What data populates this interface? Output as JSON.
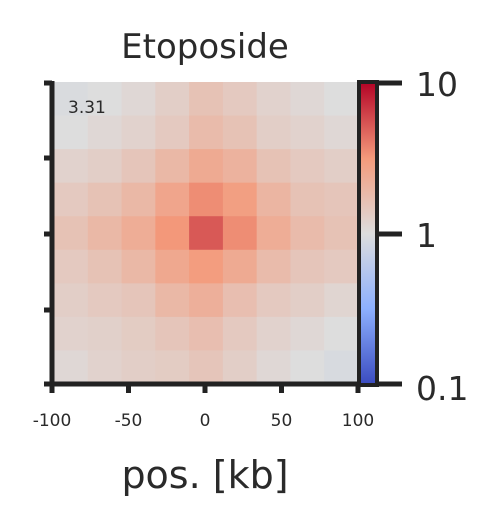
{
  "chart_data": {
    "type": "heatmap",
    "title": "Etoposide",
    "xlabel": "pos. [kb]",
    "ylabel": "",
    "x_ticks": [
      "-100",
      "-50",
      "0",
      "50",
      "100"
    ],
    "annotation": "3.31",
    "colorbar": {
      "scale": "log",
      "range": [
        0.1,
        10
      ],
      "ticks": [
        "0.1",
        "1",
        "10"
      ],
      "colormap": "coolwarm"
    },
    "values": [
      [
        0.95,
        1.0,
        1.1,
        1.3,
        1.6,
        1.4,
        1.2,
        1.1,
        1.0
      ],
      [
        1.0,
        1.1,
        1.2,
        1.4,
        1.8,
        1.6,
        1.3,
        1.2,
        1.1
      ],
      [
        1.2,
        1.3,
        1.5,
        1.9,
        2.4,
        2.1,
        1.6,
        1.4,
        1.3
      ],
      [
        1.4,
        1.6,
        1.9,
        2.6,
        3.5,
        2.9,
        2.0,
        1.6,
        1.5
      ],
      [
        1.6,
        1.9,
        2.3,
        3.2,
        5.2,
        3.5,
        2.3,
        1.8,
        1.6
      ],
      [
        1.4,
        1.6,
        1.9,
        2.5,
        3.0,
        2.4,
        1.8,
        1.5,
        1.4
      ],
      [
        1.3,
        1.4,
        1.5,
        1.9,
        2.2,
        1.7,
        1.4,
        1.3,
        1.15
      ],
      [
        1.2,
        1.25,
        1.35,
        1.5,
        1.7,
        1.4,
        1.2,
        1.1,
        1.0
      ],
      [
        1.1,
        1.2,
        1.3,
        1.35,
        1.5,
        1.3,
        1.1,
        1.0,
        0.92
      ]
    ]
  }
}
